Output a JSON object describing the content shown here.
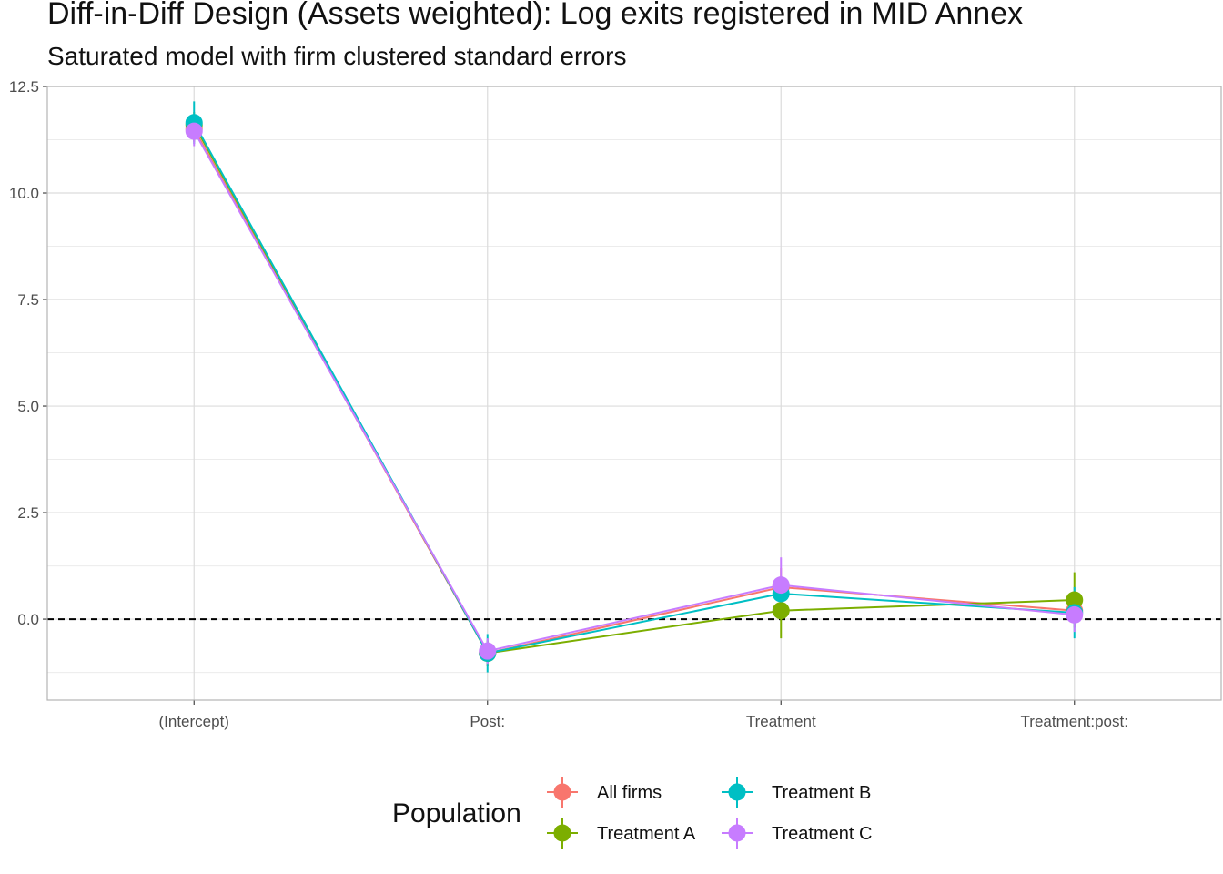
{
  "chart_data": {
    "type": "line",
    "title": "Diff-in-Diff Design (Assets weighted): Log exits registered in MID Annex",
    "subtitle": "Saturated model with firm clustered standard errors",
    "categories": [
      "(Intercept)",
      "Post:",
      "Treatment",
      "Treatment:post:"
    ],
    "ylim": [
      -1.9,
      12.5
    ],
    "yticks": [
      0.0,
      2.5,
      5.0,
      7.5,
      10.0,
      12.5
    ],
    "ytick_labels": [
      "0.0",
      "2.5",
      "5.0",
      "7.5",
      "10.0",
      "12.5"
    ],
    "reference_line": 0,
    "grid": true,
    "legend": {
      "title": "Population",
      "position": "bottom"
    },
    "series": [
      {
        "name": "All firms",
        "color": "#F8766D",
        "values": [
          11.5,
          -0.8,
          0.75,
          0.2
        ],
        "lower": [
          11.2,
          -1.1,
          0.3,
          -0.1
        ],
        "upper": [
          11.8,
          -0.5,
          1.2,
          0.5
        ]
      },
      {
        "name": "Treatment A",
        "color": "#7CAE00",
        "values": [
          11.6,
          -0.8,
          0.2,
          0.45
        ],
        "lower": [
          11.3,
          -1.1,
          -0.45,
          -0.2
        ],
        "upper": [
          11.9,
          -0.5,
          0.85,
          1.1
        ]
      },
      {
        "name": "Treatment B",
        "color": "#00BFC4",
        "values": [
          11.65,
          -0.8,
          0.6,
          0.15
        ],
        "lower": [
          11.15,
          -1.25,
          0.2,
          -0.45
        ],
        "upper": [
          12.15,
          -0.35,
          1.0,
          0.75
        ]
      },
      {
        "name": "Treatment C",
        "color": "#C77CFF",
        "values": [
          11.45,
          -0.75,
          0.8,
          0.1
        ],
        "lower": [
          11.1,
          -1.05,
          0.15,
          -0.3
        ],
        "upper": [
          11.8,
          -0.45,
          1.45,
          0.5
        ]
      }
    ]
  }
}
